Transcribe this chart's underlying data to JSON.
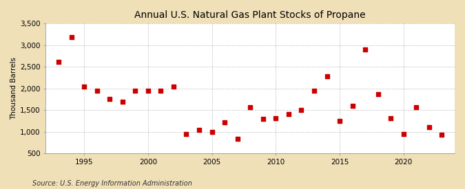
{
  "title": "Annual U.S. Natural Gas Plant Stocks of Propane",
  "ylabel": "Thousand Barrels",
  "source": "Source: U.S. Energy Information Administration",
  "fig_background_color": "#f0e0b8",
  "plot_background_color": "#ffffff",
  "marker_color": "#cc0000",
  "years": [
    1993,
    1994,
    1995,
    1996,
    1997,
    1998,
    1999,
    2000,
    2001,
    2002,
    2003,
    2004,
    2005,
    2006,
    2007,
    2008,
    2009,
    2010,
    2011,
    2012,
    2013,
    2014,
    2015,
    2016,
    2017,
    2018,
    2019,
    2020,
    2021,
    2022,
    2023
  ],
  "values": [
    2620,
    3180,
    2040,
    1940,
    1760,
    1700,
    1950,
    1940,
    1950,
    2040,
    950,
    1040,
    1000,
    1210,
    840,
    1570,
    1300,
    1320,
    1410,
    1500,
    1940,
    2280,
    1250,
    1600,
    2900,
    1870,
    1310,
    950,
    1560,
    1110,
    930
  ],
  "ylim": [
    500,
    3500
  ],
  "yticks": [
    500,
    1000,
    1500,
    2000,
    2500,
    3000,
    3500
  ],
  "ytick_labels": [
    "500",
    "1,000",
    "1,500",
    "2,000",
    "2,500",
    "3,000",
    "3,500"
  ],
  "xlim": [
    1992,
    2024
  ],
  "xticks": [
    1995,
    2000,
    2005,
    2010,
    2015,
    2020
  ],
  "title_fontsize": 10,
  "label_fontsize": 7.5,
  "source_fontsize": 7,
  "marker_size": 4
}
